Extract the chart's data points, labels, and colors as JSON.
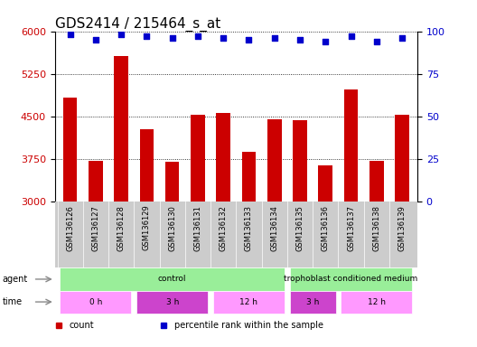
{
  "title": "GDS2414 / 215464_s_at",
  "samples": [
    "GSM136126",
    "GSM136127",
    "GSM136128",
    "GSM136129",
    "GSM136130",
    "GSM136131",
    "GSM136132",
    "GSM136133",
    "GSM136134",
    "GSM136135",
    "GSM136136",
    "GSM136137",
    "GSM136138",
    "GSM136139"
  ],
  "counts": [
    4830,
    3720,
    5560,
    4280,
    3700,
    4530,
    4560,
    3870,
    4450,
    4430,
    3630,
    4980,
    3720,
    4530
  ],
  "percentile_ranks": [
    98,
    95,
    98,
    97,
    96,
    97,
    96,
    95,
    96,
    95,
    94,
    97,
    94,
    96
  ],
  "ylim_left": [
    3000,
    6000
  ],
  "ylim_right": [
    0,
    100
  ],
  "yticks_left": [
    3000,
    3750,
    4500,
    5250,
    6000
  ],
  "yticks_right": [
    0,
    25,
    50,
    75,
    100
  ],
  "bar_color": "#CC0000",
  "scatter_color": "#0000CC",
  "grid_color": "#000000",
  "label_bg_color": "#CCCCCC",
  "agent_color_control": "#99EE99",
  "agent_color_trophoblast": "#99EE99",
  "time_color_light": "#FF99FF",
  "time_color_dark": "#CC44CC",
  "agent_groups": [
    {
      "label": "control",
      "start": 0,
      "end": 8
    },
    {
      "label": "trophoblast conditioned medium",
      "start": 9,
      "end": 13
    }
  ],
  "time_groups": [
    {
      "label": "0 h",
      "start": 0,
      "end": 2,
      "dark": false
    },
    {
      "label": "3 h",
      "start": 3,
      "end": 5,
      "dark": true
    },
    {
      "label": "12 h",
      "start": 6,
      "end": 8,
      "dark": false
    },
    {
      "label": "3 h",
      "start": 9,
      "end": 10,
      "dark": true
    },
    {
      "label": "12 h",
      "start": 11,
      "end": 13,
      "dark": false
    }
  ],
  "legend_items": [
    {
      "label": "count",
      "color": "#CC0000"
    },
    {
      "label": "percentile rank within the sample",
      "color": "#0000CC"
    }
  ],
  "title_fontsize": 11,
  "tick_fontsize": 8,
  "label_fontsize": 7,
  "bar_width": 0.55,
  "background_color": "#FFFFFF"
}
